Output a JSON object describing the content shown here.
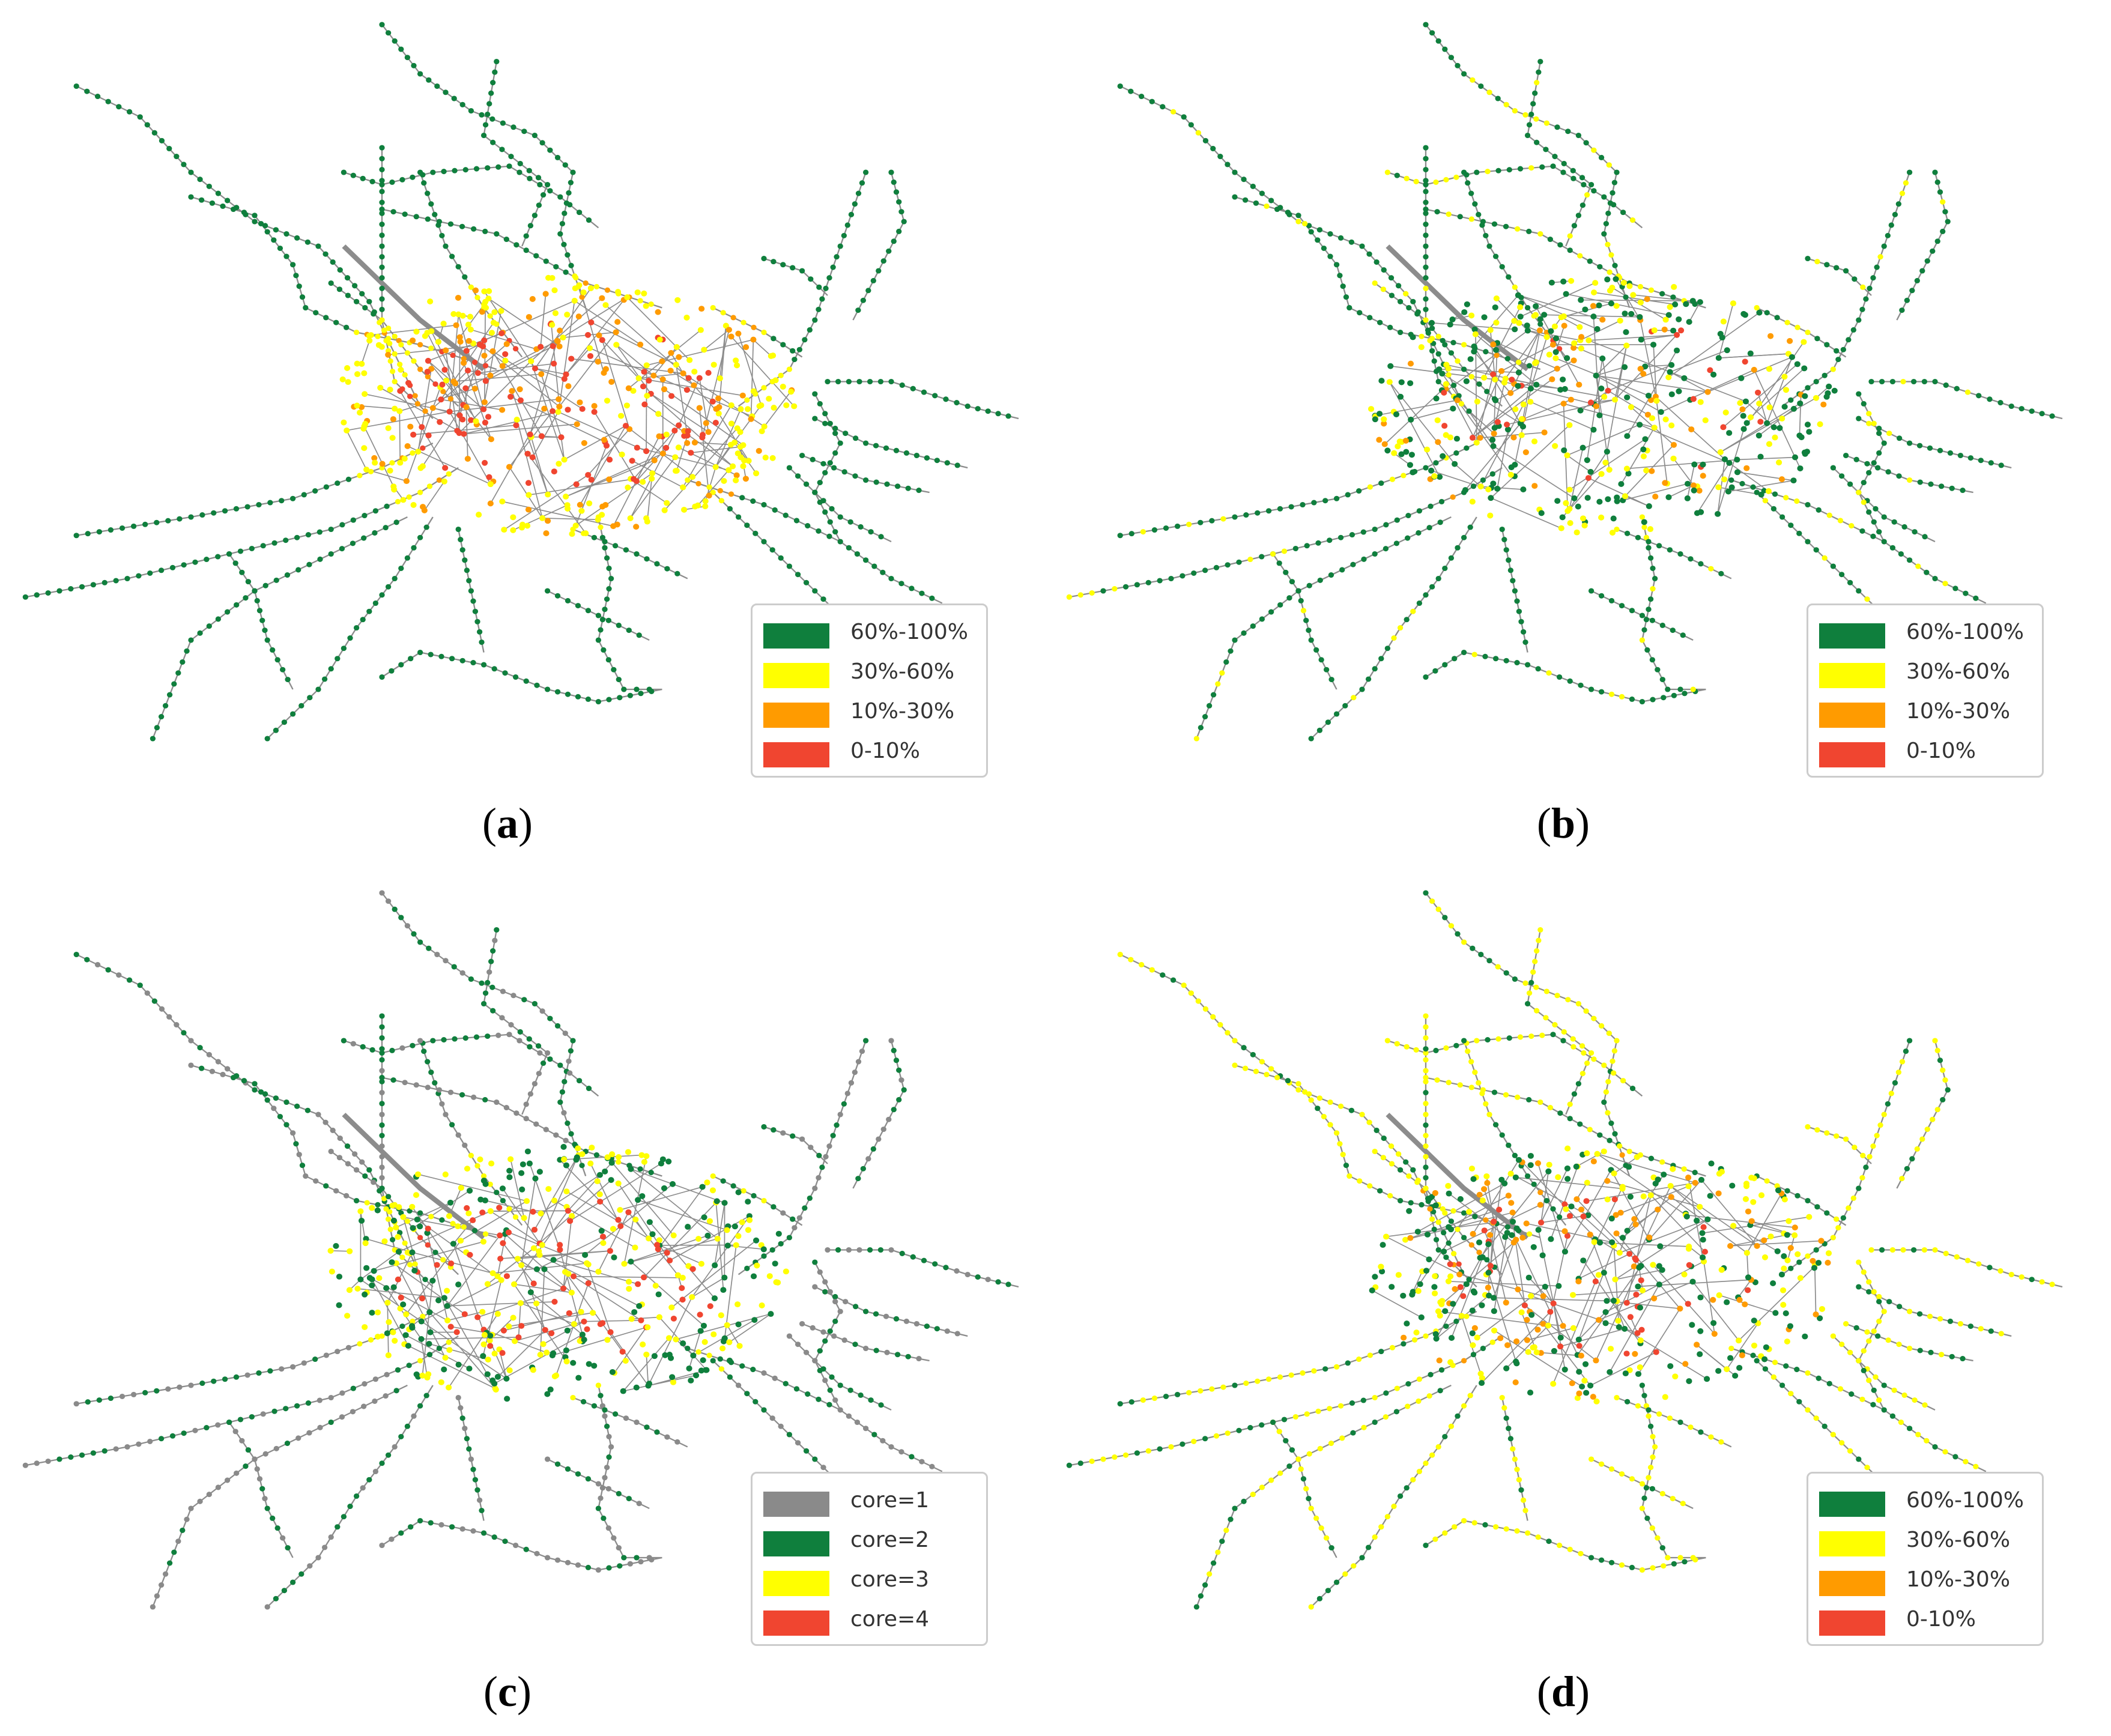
{
  "colors": {
    "green": "#0f7f3d",
    "yellow": "#ffff00",
    "orange": "#ff9b00",
    "red": "#f04530",
    "gray": "#8a8a8a",
    "edge": "#8c8c8c"
  },
  "panels": [
    {
      "label": "a",
      "legend": [
        {
          "label": "60%-100%",
          "color": "#0f7f3d"
        },
        {
          "label": "30%-60%",
          "color": "#ffff00"
        },
        {
          "label": "10%-30%",
          "color": "#ff9b00"
        },
        {
          "label": "0-10%",
          "color": "#f04530"
        }
      ],
      "scheme": "a"
    },
    {
      "label": "b",
      "legend": [
        {
          "label": "60%-100%",
          "color": "#0f7f3d"
        },
        {
          "label": "30%-60%",
          "color": "#ffff00"
        },
        {
          "label": "10%-30%",
          "color": "#ff9b00"
        },
        {
          "label": "0-10%",
          "color": "#f04530"
        }
      ],
      "scheme": "b"
    },
    {
      "label": "c",
      "legend": [
        {
          "label": "core=1",
          "color": "#8a8a8a"
        },
        {
          "label": "core=2",
          "color": "#0f7f3d"
        },
        {
          "label": "core=3",
          "color": "#ffff00"
        },
        {
          "label": "core=4",
          "color": "#f04530"
        }
      ],
      "scheme": "c"
    },
    {
      "label": "d",
      "legend": [
        {
          "label": "60%-100%",
          "color": "#0f7f3d"
        },
        {
          "label": "30%-60%",
          "color": "#ffff00"
        },
        {
          "label": "10%-30%",
          "color": "#ff9b00"
        },
        {
          "label": "0-10%",
          "color": "#f04530"
        }
      ],
      "scheme": "d"
    }
  ]
}
